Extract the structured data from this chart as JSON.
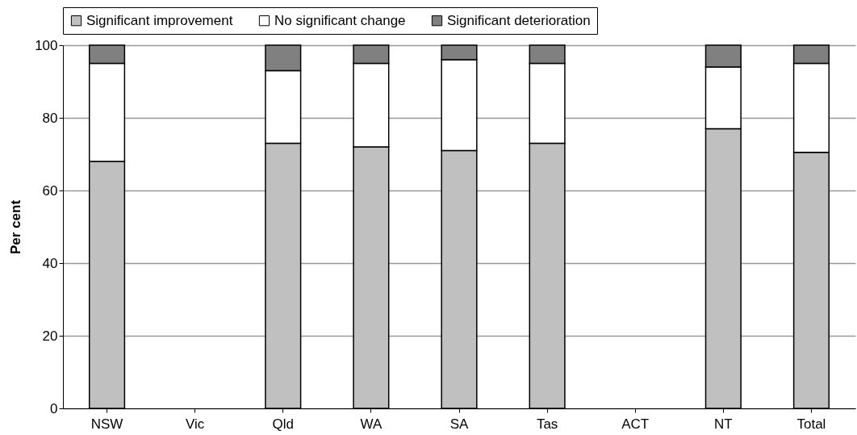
{
  "chart_data": {
    "type": "bar",
    "stacked": true,
    "ylabel": "Per cent",
    "categories": [
      "NSW",
      "Vic",
      "Qld",
      "WA",
      "SA",
      "Tas",
      "ACT",
      "NT",
      "Total"
    ],
    "series": [
      {
        "name": "Significant improvement",
        "color": "#c0c0c0",
        "values": [
          68,
          null,
          73,
          72,
          71,
          73,
          null,
          77,
          70.5
        ]
      },
      {
        "name": "No significant change",
        "color": "#ffffff",
        "values": [
          27,
          null,
          20,
          23,
          25,
          22,
          null,
          17,
          24.5
        ]
      },
      {
        "name": "Significant deterioration",
        "color": "#808080",
        "values": [
          5,
          null,
          7,
          5,
          4,
          5,
          null,
          6,
          5
        ]
      }
    ],
    "ylim": [
      0,
      100
    ],
    "yticks": [
      0,
      20,
      40,
      60,
      80,
      100
    ],
    "grid": "y",
    "legend": "top"
  }
}
